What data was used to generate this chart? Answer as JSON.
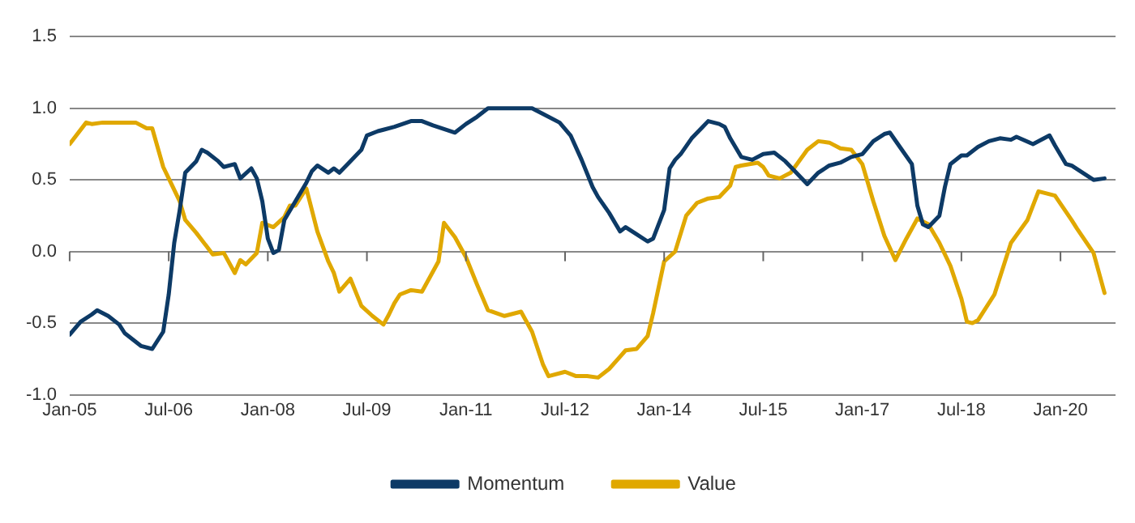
{
  "chart_data": {
    "type": "line",
    "xlim": [
      "2005-01",
      "2020-11"
    ],
    "ylim": [
      -1,
      1.5
    ],
    "xticks": [
      {
        "value": "2005-01",
        "label": "Jan-05"
      },
      {
        "value": "2006-07",
        "label": "Jul-06"
      },
      {
        "value": "2008-01",
        "label": "Jan-08"
      },
      {
        "value": "2009-07",
        "label": "Jul-09"
      },
      {
        "value": "2011-01",
        "label": "Jan-11"
      },
      {
        "value": "2012-07",
        "label": "Jul-12"
      },
      {
        "value": "2014-01",
        "label": "Jan-14"
      },
      {
        "value": "2015-07",
        "label": "Jul-15"
      },
      {
        "value": "2017-01",
        "label": "Jan-17"
      },
      {
        "value": "2018-07",
        "label": "Jul-18"
      },
      {
        "value": "2020-01",
        "label": "Jan-20"
      }
    ],
    "yticks": [
      {
        "value": -1,
        "label": "-1.0"
      },
      {
        "value": -0.5,
        "label": "-0.5"
      },
      {
        "value": 0,
        "label": "0.0"
      },
      {
        "value": 0.5,
        "label": "0.5"
      },
      {
        "value": 1,
        "label": "1.0"
      },
      {
        "value": 1.5,
        "label": "1.5"
      }
    ],
    "grid": "y",
    "legend": "bottom",
    "marker": "none",
    "line_style": "solid",
    "series": [
      {
        "name": "Momentum",
        "color": "#0d3a66",
        "x": [
          "2005-01",
          "2005-03",
          "2005-05",
          "2005-06",
          "2005-08",
          "2005-10",
          "2005-11",
          "2006-02",
          "2006-04",
          "2006-06",
          "2006-07",
          "2006-08",
          "2006-09",
          "2006-10",
          "2006-12",
          "2007-01",
          "2007-02",
          "2007-04",
          "2007-05",
          "2007-07",
          "2007-08",
          "2007-10",
          "2007-11",
          "2007-12",
          "2008-01",
          "2008-02",
          "2008-03",
          "2008-04",
          "2008-06",
          "2008-08",
          "2008-09",
          "2008-10",
          "2008-12",
          "2009-01",
          "2009-02",
          "2009-04",
          "2009-06",
          "2009-07",
          "2009-09",
          "2009-10",
          "2009-12",
          "2010-03",
          "2010-05",
          "2010-07",
          "2010-11",
          "2011-01",
          "2011-03",
          "2011-05",
          "2012-01",
          "2012-03",
          "2012-06",
          "2012-08",
          "2012-10",
          "2012-12",
          "2013-01",
          "2013-03",
          "2013-05",
          "2013-06",
          "2013-08",
          "2013-10",
          "2013-11",
          "2014-01",
          "2014-02",
          "2014-03",
          "2014-04",
          "2014-06",
          "2014-08",
          "2014-09",
          "2014-11",
          "2014-12",
          "2015-01",
          "2015-03",
          "2015-05",
          "2015-07",
          "2015-09",
          "2015-11",
          "2016-01",
          "2016-03",
          "2016-05",
          "2016-07",
          "2016-09",
          "2016-11",
          "2017-01",
          "2017-03",
          "2017-05",
          "2017-06",
          "2017-08",
          "2017-10",
          "2017-11",
          "2017-12",
          "2018-01",
          "2018-03",
          "2018-04",
          "2018-05",
          "2018-07",
          "2018-08",
          "2018-10",
          "2018-12",
          "2019-02",
          "2019-04",
          "2019-05",
          "2019-08",
          "2019-11",
          "2019-12",
          "2020-02",
          "2020-03",
          "2020-07",
          "2020-09"
        ],
        "values": [
          -0.58,
          -0.49,
          -0.44,
          -0.41,
          -0.45,
          -0.51,
          -0.57,
          -0.66,
          -0.68,
          -0.56,
          -0.3,
          0.06,
          0.29,
          0.55,
          0.63,
          0.71,
          0.69,
          0.63,
          0.59,
          0.61,
          0.51,
          0.58,
          0.51,
          0.35,
          0.09,
          -0.01,
          0.01,
          0.22,
          0.35,
          0.48,
          0.56,
          0.6,
          0.55,
          0.58,
          0.55,
          0.63,
          0.71,
          0.81,
          0.84,
          0.85,
          0.87,
          0.91,
          0.91,
          0.88,
          0.83,
          0.89,
          0.94,
          1.0,
          1.0,
          0.96,
          0.9,
          0.81,
          0.64,
          0.45,
          0.38,
          0.27,
          0.14,
          0.17,
          0.12,
          0.07,
          0.09,
          0.29,
          0.58,
          0.64,
          0.68,
          0.79,
          0.87,
          0.91,
          0.89,
          0.87,
          0.79,
          0.66,
          0.64,
          0.68,
          0.69,
          0.63,
          0.55,
          0.47,
          0.55,
          0.6,
          0.62,
          0.66,
          0.68,
          0.77,
          0.82,
          0.83,
          0.72,
          0.61,
          0.32,
          0.19,
          0.17,
          0.25,
          0.45,
          0.61,
          0.67,
          0.67,
          0.73,
          0.77,
          0.79,
          0.78,
          0.8,
          0.75,
          0.81,
          0.74,
          0.61,
          0.6,
          0.5,
          0.51
        ]
      },
      {
        "name": "Value",
        "color": "#e0a800",
        "x": [
          "2005-01",
          "2005-04",
          "2005-05",
          "2005-07",
          "2006-01",
          "2006-03",
          "2006-04",
          "2006-06",
          "2006-07",
          "2006-09",
          "2006-10",
          "2006-12",
          "2007-02",
          "2007-03",
          "2007-05",
          "2007-07",
          "2007-08",
          "2007-09",
          "2007-11",
          "2007-12",
          "2008-02",
          "2008-04",
          "2008-05",
          "2008-06",
          "2008-08",
          "2008-10",
          "2008-12",
          "2009-01",
          "2009-02",
          "2009-04",
          "2009-06",
          "2009-08",
          "2009-10",
          "2009-11",
          "2009-12",
          "2010-01",
          "2010-03",
          "2010-05",
          "2010-08",
          "2010-09",
          "2010-11",
          "2011-01",
          "2011-03",
          "2011-05",
          "2011-08",
          "2011-11",
          "2012-01",
          "2012-03",
          "2012-04",
          "2012-07",
          "2012-09",
          "2012-11",
          "2013-01",
          "2013-03",
          "2013-06",
          "2013-08",
          "2013-10",
          "2013-11",
          "2014-01",
          "2014-03",
          "2014-05",
          "2014-07",
          "2014-09",
          "2014-11",
          "2015-01",
          "2015-02",
          "2015-03",
          "2015-06",
          "2015-07",
          "2015-08",
          "2015-10",
          "2015-12",
          "2016-03",
          "2016-05",
          "2016-07",
          "2016-09",
          "2016-11",
          "2017-01",
          "2017-03",
          "2017-05",
          "2017-07",
          "2017-09",
          "2017-11",
          "2018-01",
          "2018-03",
          "2018-05",
          "2018-07",
          "2018-08",
          "2018-09",
          "2018-10",
          "2019-01",
          "2019-04",
          "2019-07",
          "2019-09",
          "2019-11",
          "2019-12",
          "2020-03",
          "2020-04",
          "2020-07",
          "2020-09"
        ],
        "values": [
          0.75,
          0.9,
          0.89,
          0.9,
          0.9,
          0.86,
          0.86,
          0.59,
          0.51,
          0.35,
          0.22,
          0.13,
          0.03,
          -0.02,
          -0.01,
          -0.15,
          -0.06,
          -0.09,
          -0.01,
          0.2,
          0.17,
          0.24,
          0.32,
          0.32,
          0.44,
          0.14,
          -0.07,
          -0.15,
          -0.28,
          -0.19,
          -0.38,
          -0.45,
          -0.51,
          -0.44,
          -0.36,
          -0.3,
          -0.27,
          -0.28,
          -0.07,
          0.2,
          0.1,
          -0.04,
          -0.23,
          -0.41,
          -0.45,
          -0.42,
          -0.56,
          -0.79,
          -0.87,
          -0.84,
          -0.87,
          -0.87,
          -0.88,
          -0.82,
          -0.69,
          -0.68,
          -0.59,
          -0.43,
          -0.07,
          0.0,
          0.25,
          0.34,
          0.37,
          0.38,
          0.46,
          0.59,
          0.6,
          0.62,
          0.59,
          0.53,
          0.51,
          0.55,
          0.71,
          0.77,
          0.76,
          0.72,
          0.71,
          0.61,
          0.35,
          0.11,
          -0.06,
          0.09,
          0.23,
          0.19,
          0.06,
          -0.1,
          -0.33,
          -0.49,
          -0.5,
          -0.48,
          -0.3,
          0.06,
          0.22,
          0.42,
          0.4,
          0.39,
          0.22,
          0.16,
          -0.01,
          -0.29
        ]
      }
    ]
  }
}
